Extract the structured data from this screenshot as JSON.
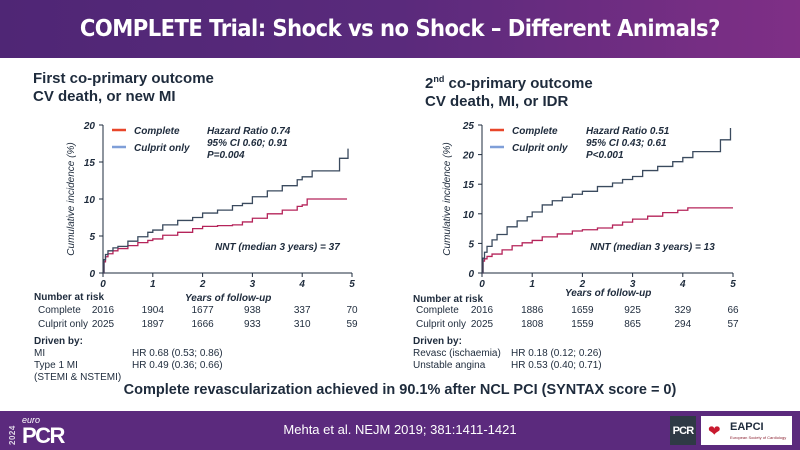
{
  "header": {
    "title": "COMPLETE Trial:  Shock vs no Shock – Different Animals?"
  },
  "left_panel": {
    "title_line1": "First co-primary outcome",
    "title_line2": "CV death, or new MI",
    "stats": {
      "hr": "Hazard Ratio 0.74",
      "ci": "95% CI 0.60; 0.91",
      "p": "P=0.004"
    },
    "nnt": "NNT (median 3 years) = 37",
    "risk_table": {
      "header": "Number at risk",
      "rows": [
        {
          "label": "Complete",
          "values": [
            "2016",
            "1904",
            "1677",
            "938",
            "337",
            "70"
          ]
        },
        {
          "label": "Culprit only",
          "values": [
            "2025",
            "1897",
            "1666",
            "933",
            "310",
            "59"
          ]
        }
      ]
    },
    "driven_by": {
      "title": "Driven by:",
      "items": [
        {
          "label": "MI",
          "value": "HR 0.68 (0.53; 0.86)"
        },
        {
          "label": "Type 1 MI",
          "value": "HR 0.49 (0.36; 0.66)"
        },
        {
          "label": "(STEMI & NSTEMI)",
          "value": ""
        }
      ]
    }
  },
  "right_panel": {
    "title_prefix": "2",
    "title_sup": "nd",
    "title_line1_rest": " co-primary outcome",
    "title_line2": "CV death, MI, or IDR",
    "stats": {
      "hr": "Hazard Ratio 0.51",
      "ci": "95% CI 0.43; 0.61",
      "p": "P<0.001"
    },
    "nnt": "NNT (median 3 years) = 13",
    "risk_table": {
      "header": "Number at risk",
      "rows": [
        {
          "label": "Complete",
          "values": [
            "2016",
            "1886",
            "1659",
            "925",
            "329",
            "66"
          ]
        },
        {
          "label": "Culprit only",
          "values": [
            "2025",
            "1808",
            "1559",
            "865",
            "294",
            "57"
          ]
        }
      ]
    },
    "driven_by": {
      "title": "Driven by:",
      "items": [
        {
          "label": "Revasc (ischaemia)",
          "value": "HR 0.18 (0.12; 0.26)"
        },
        {
          "label": "Unstable angina",
          "value": "HR 0.53 (0.40; 0.71)"
        }
      ]
    }
  },
  "bottom_statement": "Complete revascularization achieved in 90.1% after NCL PCI (SYNTAX score = 0)",
  "footer": {
    "citation": "Mehta et al. NEJM 2019; 381:1411-1421",
    "logo_year": "2024",
    "logo_euro": "euro",
    "logo_pcr": "PCR",
    "pcr_badge": "PCR",
    "eapci_label": "EAPCI",
    "eapci_sub": "European Society of Cardiology"
  },
  "colors": {
    "complete": "#b5245a",
    "culprit": "#3a4a5e",
    "legend_complete": "#e8462a",
    "legend_culprit": "#7f9fd8",
    "brand_purple": "#5b2a7d"
  },
  "chart_data": [
    {
      "type": "line",
      "title": "First co-primary outcome: CV death, or new MI",
      "xlabel": "Years of follow-up",
      "ylabel": "Cumulative incidence (%)",
      "xlim": [
        0,
        5
      ],
      "ylim": [
        0,
        20
      ],
      "xticks": [
        "0",
        "1",
        "2",
        "3",
        "4",
        "5"
      ],
      "yticks": [
        "0",
        "5",
        "10",
        "15",
        "20"
      ],
      "legend": "top-left",
      "grid": false,
      "series": [
        {
          "name": "Complete",
          "x": [
            0,
            0.02,
            0.05,
            0.1,
            0.2,
            0.3,
            0.5,
            0.7,
            0.9,
            1.0,
            1.2,
            1.5,
            1.8,
            2.0,
            2.3,
            2.6,
            2.8,
            3.0,
            3.3,
            3.6,
            3.9,
            4.0,
            4.1,
            4.5,
            4.9
          ],
          "y": [
            0,
            1.5,
            2.2,
            2.6,
            3.0,
            3.3,
            3.7,
            4.1,
            4.4,
            4.6,
            5.1,
            5.5,
            6.0,
            6.3,
            6.4,
            6.5,
            6.9,
            7.4,
            8.0,
            8.5,
            9.0,
            9.2,
            10.0,
            10.0,
            10.0
          ]
        },
        {
          "name": "Culprit only",
          "x": [
            0,
            0.02,
            0.05,
            0.1,
            0.2,
            0.3,
            0.5,
            0.7,
            0.9,
            1.0,
            1.2,
            1.5,
            1.8,
            2.0,
            2.3,
            2.6,
            2.8,
            3.0,
            3.3,
            3.6,
            3.9,
            4.0,
            4.2,
            4.5,
            4.7,
            4.75,
            4.9,
            4.92
          ],
          "y": [
            0,
            1.8,
            2.5,
            3.0,
            3.4,
            3.6,
            4.3,
            4.9,
            5.5,
            5.8,
            6.5,
            7.1,
            7.5,
            8.1,
            8.5,
            9.1,
            9.4,
            10.3,
            11.1,
            11.8,
            12.6,
            13.0,
            13.8,
            13.8,
            13.8,
            15.5,
            15.5,
            16.8
          ]
        }
      ],
      "annotations": [
        "Hazard Ratio 0.74",
        "95% CI 0.60; 0.91",
        "P=0.004",
        "NNT (median 3 years) = 37"
      ]
    },
    {
      "type": "line",
      "title": "2nd co-primary outcome: CV death, MI, or IDR",
      "xlabel": "Years of follow-up",
      "ylabel": "Cumulative incidence (%)",
      "xlim": [
        0,
        5
      ],
      "ylim": [
        0,
        25
      ],
      "xticks": [
        "0",
        "1",
        "2",
        "3",
        "4",
        "5"
      ],
      "yticks": [
        "0",
        "5",
        "10",
        "15",
        "20",
        "25"
      ],
      "legend": "top-left",
      "grid": false,
      "series": [
        {
          "name": "Complete",
          "x": [
            0,
            0.02,
            0.05,
            0.1,
            0.2,
            0.4,
            0.6,
            0.8,
            1.0,
            1.2,
            1.5,
            1.8,
            2.0,
            2.3,
            2.6,
            2.8,
            3.0,
            3.3,
            3.6,
            3.9,
            4.1,
            4.5,
            5.0
          ],
          "y": [
            0,
            2.0,
            2.4,
            2.8,
            3.2,
            3.9,
            4.6,
            5.1,
            5.5,
            6.1,
            6.6,
            7.1,
            7.3,
            7.6,
            8.1,
            8.6,
            9.1,
            9.6,
            10.2,
            10.6,
            11.0,
            11.0,
            11.0
          ]
        },
        {
          "name": "Culprit only",
          "x": [
            0,
            0.02,
            0.05,
            0.1,
            0.2,
            0.3,
            0.5,
            0.7,
            0.9,
            1.0,
            1.2,
            1.4,
            1.6,
            1.8,
            2.0,
            2.3,
            2.6,
            2.8,
            3.0,
            3.2,
            3.5,
            3.8,
            4.0,
            4.2,
            4.5,
            4.7,
            4.75,
            4.92,
            4.95
          ],
          "y": [
            0,
            2.5,
            3.5,
            4.5,
            5.6,
            6.5,
            7.8,
            8.8,
            9.5,
            10.3,
            11.5,
            12.2,
            12.8,
            13.3,
            13.8,
            14.6,
            15.2,
            15.8,
            16.3,
            17.3,
            18.0,
            18.8,
            19.5,
            20.5,
            20.5,
            20.5,
            22.5,
            22.5,
            24.5
          ]
        }
      ],
      "annotations": [
        "Hazard Ratio 0.51",
        "95% CI 0.43; 0.61",
        "P<0.001",
        "NNT (median 3 years) = 13"
      ]
    }
  ]
}
